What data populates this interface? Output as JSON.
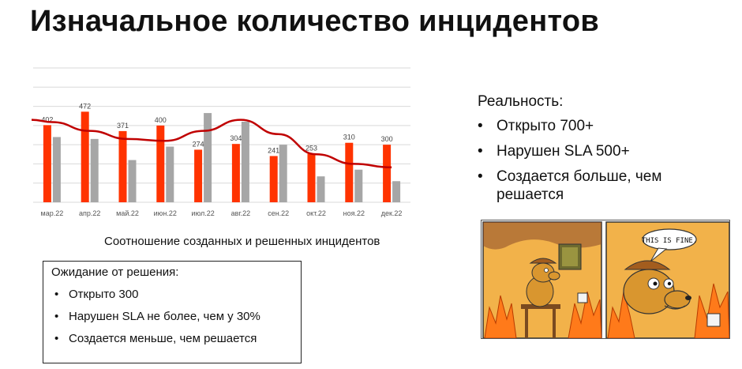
{
  "slide": {
    "title": "Изначальное количество инцидентов",
    "chart_caption": "Соотношение созданных и решенных инцидентов"
  },
  "expectation": {
    "heading": "Ожидание от решения:",
    "items": [
      "Открыто 300",
      "Нарушен SLA не более, чем у 30%",
      "Создается меньше, чем решается"
    ]
  },
  "reality": {
    "heading": "Реальность:",
    "items": [
      "Открыто 700+",
      "Нарушен SLA 500+",
      "Создается больше, чем решается"
    ]
  },
  "meme": {
    "speech": "THIS IS FINE."
  },
  "colors": {
    "created": "#ff3300",
    "resolved": "#a6a6a6",
    "trend": "#c00000",
    "grid": "#d9d9d9"
  },
  "chart_data": {
    "type": "bar",
    "categories": [
      "мар.22",
      "апр.22",
      "май.22",
      "июн.22",
      "июл.22",
      "авг.22",
      "сен.22",
      "окт.22",
      "ноя.22",
      "дек.22"
    ],
    "series": [
      {
        "values": [
          402,
          472,
          371,
          400,
          274,
          304,
          241,
          253,
          310,
          300
        ]
      },
      {
        "values": [
          340,
          330,
          220,
          290,
          465,
          420,
          300,
          135,
          170,
          110
        ]
      },
      {
        "values": [
          418,
          372,
          330,
          320,
          372,
          430,
          355,
          250,
          200,
          182
        ]
      }
    ],
    "series_types": [
      "bar",
      "bar",
      "line"
    ],
    "ylim": [
      0,
      700
    ],
    "grid": true,
    "legend": "none"
  }
}
